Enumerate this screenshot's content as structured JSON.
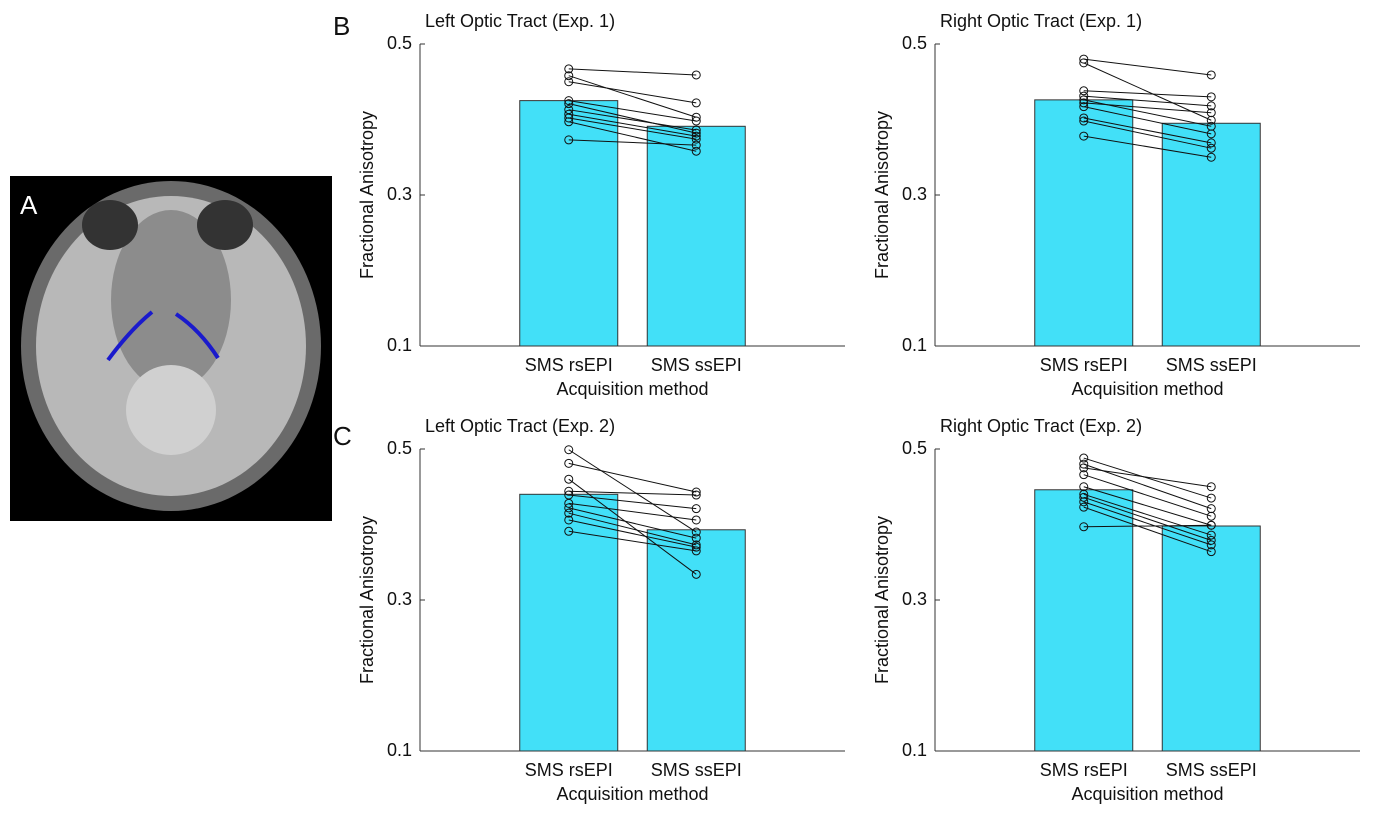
{
  "panel_labels": [
    "A",
    "B",
    "C"
  ],
  "chart_data": [
    {
      "type": "bar",
      "title": "Left Optic Tract (Exp. 1)",
      "ylabel": "Fractional Anisotropy",
      "xlabel": "Acquisition method",
      "categories": [
        "SMS rsEPI",
        "SMS ssEPI"
      ],
      "values": [
        0.425,
        0.391
      ],
      "color": "#42e0f8",
      "ylim": [
        0.1,
        0.5
      ],
      "yticks": [
        0.1,
        0.3,
        0.5
      ],
      "points": [
        [
          0.467,
          0.459
        ],
        [
          0.458,
          0.403
        ],
        [
          0.45,
          0.422
        ],
        [
          0.425,
          0.398
        ],
        [
          0.421,
          0.382
        ],
        [
          0.413,
          0.386
        ],
        [
          0.407,
          0.378
        ],
        [
          0.402,
          0.374
        ],
        [
          0.397,
          0.358
        ],
        [
          0.373,
          0.366
        ]
      ]
    },
    {
      "type": "bar",
      "title": "Right Optic Tract (Exp. 1)",
      "ylabel": "Fractional Anisotropy",
      "xlabel": "Acquisition method",
      "categories": [
        "SMS rsEPI",
        "SMS ssEPI"
      ],
      "values": [
        0.426,
        0.395
      ],
      "color": "#42e0f8",
      "ylim": [
        0.1,
        0.5
      ],
      "yticks": [
        0.1,
        0.3,
        0.5
      ],
      "points": [
        [
          0.48,
          0.459
        ],
        [
          0.475,
          0.399
        ],
        [
          0.438,
          0.43
        ],
        [
          0.431,
          0.418
        ],
        [
          0.426,
          0.391
        ],
        [
          0.422,
          0.409
        ],
        [
          0.417,
          0.381
        ],
        [
          0.402,
          0.369
        ],
        [
          0.398,
          0.362
        ],
        [
          0.378,
          0.35
        ]
      ]
    },
    {
      "type": "bar",
      "title": "Left Optic Tract (Exp. 2)",
      "ylabel": "Fractional Anisotropy",
      "xlabel": "Acquisition method",
      "categories": [
        "SMS rsEPI",
        "SMS ssEPI"
      ],
      "values": [
        0.44,
        0.393
      ],
      "color": "#42e0f8",
      "ylim": [
        0.1,
        0.5
      ],
      "yticks": [
        0.1,
        0.3,
        0.5
      ],
      "points": [
        [
          0.499,
          0.39
        ],
        [
          0.481,
          0.443
        ],
        [
          0.46,
          0.334
        ],
        [
          0.444,
          0.439
        ],
        [
          0.439,
          0.421
        ],
        [
          0.428,
          0.406
        ],
        [
          0.422,
          0.382
        ],
        [
          0.415,
          0.373
        ],
        [
          0.406,
          0.37
        ],
        [
          0.391,
          0.365
        ]
      ]
    },
    {
      "type": "bar",
      "title": "Right Optic Tract (Exp. 2)",
      "ylabel": "Fractional Anisotropy",
      "xlabel": "Acquisition method",
      "categories": [
        "SMS rsEPI",
        "SMS ssEPI"
      ],
      "values": [
        0.446,
        0.398
      ],
      "color": "#42e0f8",
      "ylim": [
        0.1,
        0.5
      ],
      "yticks": [
        0.1,
        0.3,
        0.5
      ],
      "points": [
        [
          0.488,
          0.435
        ],
        [
          0.48,
          0.421
        ],
        [
          0.475,
          0.45
        ],
        [
          0.466,
          0.411
        ],
        [
          0.45,
          0.399
        ],
        [
          0.44,
          0.386
        ],
        [
          0.436,
          0.379
        ],
        [
          0.43,
          0.373
        ],
        [
          0.423,
          0.364
        ],
        [
          0.397,
          0.399
        ]
      ]
    }
  ]
}
